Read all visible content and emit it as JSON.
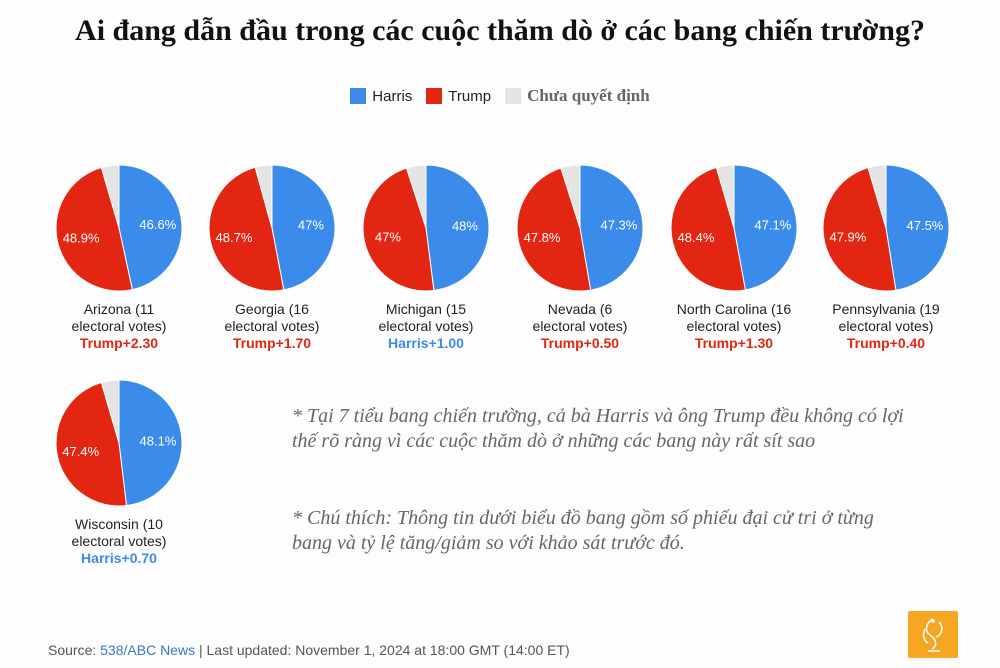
{
  "title": "Ai đang dẫn đầu trong các cuộc thăm dò ở các bang chiến trường?",
  "legend": {
    "harris": "Harris",
    "trump": "Trump",
    "undecided": "Chưa quyết định"
  },
  "colors": {
    "harris": "#3b8beb",
    "trump": "#e32612",
    "undecided": "#e4e4e4"
  },
  "chart_data": {
    "type": "pie",
    "series_names": [
      "Harris",
      "Trump",
      "Chưa quyết định"
    ],
    "states": [
      {
        "name": "Arizona (11",
        "votes_line": "electoral votes)",
        "harris": 46.6,
        "trump": 48.9,
        "harris_label": "46.6%",
        "trump_label": "48.9%",
        "margin": "Trump+2.30",
        "leader": "trump"
      },
      {
        "name": "Georgia (16",
        "votes_line": "electoral votes)",
        "harris": 47,
        "trump": 48.7,
        "harris_label": "47%",
        "trump_label": "48.7%",
        "margin": "Trump+1.70",
        "leader": "trump"
      },
      {
        "name": "Michigan (15",
        "votes_line": "electoral votes)",
        "harris": 48,
        "trump": 47,
        "harris_label": "48%",
        "trump_label": "47%",
        "margin": "Harris+1.00",
        "leader": "harris"
      },
      {
        "name": "Nevada (6",
        "votes_line": "electoral votes)",
        "harris": 47.3,
        "trump": 47.8,
        "harris_label": "47.3%",
        "trump_label": "47.8%",
        "margin": "Trump+0.50",
        "leader": "trump"
      },
      {
        "name": "North Carolina (16",
        "votes_line": "electoral votes)",
        "harris": 47.1,
        "trump": 48.4,
        "harris_label": "47.1%",
        "trump_label": "48.4%",
        "margin": "Trump+1.30",
        "leader": "trump"
      },
      {
        "name": "Pennsylvania (19",
        "votes_line": "electoral votes)",
        "harris": 47.5,
        "trump": 47.9,
        "harris_label": "47.5%",
        "trump_label": "47.9%",
        "margin": "Trump+0.40",
        "leader": "trump"
      },
      {
        "name": "Wisconsin (10",
        "votes_line": "electoral votes)",
        "harris": 48.1,
        "trump": 47.4,
        "harris_label": "48.1%",
        "trump_label": "47.4%",
        "margin": "Harris+0.70",
        "leader": "harris"
      }
    ]
  },
  "notes": {
    "note1": "* Tại 7 tiểu bang chiến trường, cả bà Harris và ông Trump đều không có lợi thế rõ ràng vì các cuộc thăm dò ở những các bang này rất sít sao",
    "note2": "* Chú thích: Thông tin dưới biểu đồ bang gồm số phiếu đại cử tri ở từng bang và tỷ lệ tăng/giảm so với khảo sát trước đó."
  },
  "source": {
    "prefix": "Source: ",
    "name": "538/ABC News",
    "separator": " | Last updated: November 1, 2024 at 18:00 GMT (14:00 ET)"
  },
  "logo": {
    "icon": "network-logo"
  }
}
